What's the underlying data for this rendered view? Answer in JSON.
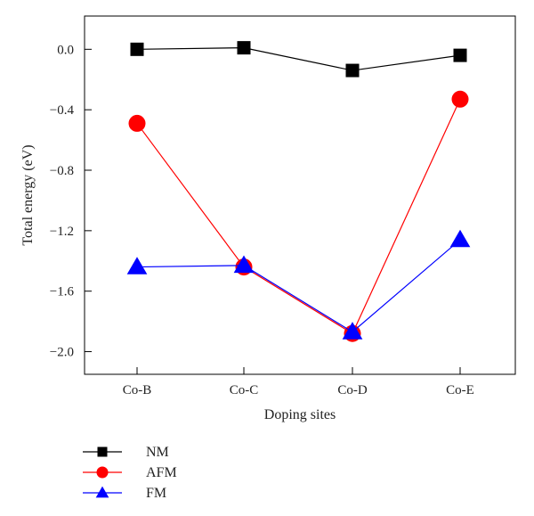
{
  "chart_data": {
    "type": "line",
    "xlabel": "Doping sites",
    "ylabel": "Total energy (eV)",
    "categories": [
      "Co-B",
      "Co-C",
      "Co-D",
      "Co-E"
    ],
    "ylim": [
      -2.15,
      0.22
    ],
    "yticks": [
      0.0,
      -0.4,
      -0.8,
      -1.2,
      -1.6,
      -2.0
    ],
    "ytick_labels": [
      "0.0",
      "−0.4",
      "−0.8",
      "−1.2",
      "−1.6",
      "−2.0"
    ],
    "grid": false,
    "legend": "bottom-left, below plot",
    "series": [
      {
        "name": "NM",
        "color": "#000000",
        "marker": "square",
        "values": [
          0.0,
          0.01,
          -0.14,
          -0.04
        ]
      },
      {
        "name": "AFM",
        "color": "#ff0000",
        "marker": "circle",
        "values": [
          -0.49,
          -1.44,
          -1.88,
          -0.33
        ]
      },
      {
        "name": "FM",
        "color": "#0000ff",
        "marker": "triangle",
        "values": [
          -1.44,
          -1.43,
          -1.87,
          -1.26
        ]
      }
    ]
  }
}
